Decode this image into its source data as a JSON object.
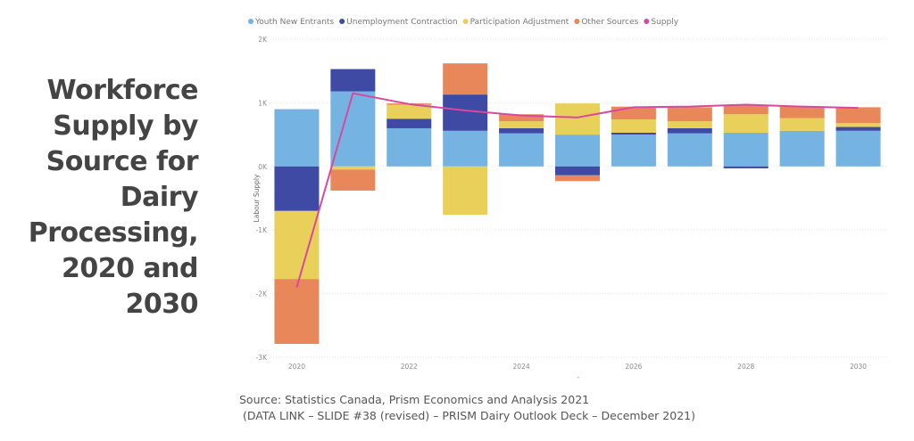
{
  "title_lines": [
    "Workforce",
    "Supply by",
    "Source for",
    "Dairy",
    "Processing,",
    "2020 and",
    "2030"
  ],
  "source_line1": "Source: Statistics Canada, Prism Economics and Analysis 2021",
  "source_line2": " (DATA LINK – SLIDE #38 (revised) – PRISM Dairy Outlook Deck – December 2021)",
  "chart_data": {
    "type": "bar",
    "stacked": true,
    "title": "Workforce Supply by Source for Dairy Processing, 2020 and 2030",
    "xlabel": "",
    "ylabel": "Labour Supply",
    "ylim": [
      -3000,
      2000
    ],
    "yticks": [
      2000,
      1000,
      0,
      -1000,
      -2000,
      -3000
    ],
    "ytick_labels": [
      "2K",
      "1K",
      "0K",
      "-1K",
      "-2K",
      "-3K"
    ],
    "categories": [
      "2020",
      "2021",
      "2022",
      "2023",
      "2024",
      "2025",
      "2026",
      "2027",
      "2028",
      "2029",
      "2030"
    ],
    "xtick_labels": [
      "2020",
      "",
      "2022",
      "",
      "2024",
      "",
      "2026",
      "",
      "2028",
      "",
      "2030"
    ],
    "grid": true,
    "legend_position": "top-left",
    "series": [
      {
        "name": "Youth New Entrants",
        "type": "bar",
        "color": "#74B3E2",
        "values": [
          900,
          1180,
          600,
          560,
          520,
          500,
          500,
          520,
          530,
          560,
          560
        ]
      },
      {
        "name": "Unemployment Contraction",
        "type": "bar",
        "color": "#3F4AA5",
        "values": [
          -700,
          350,
          150,
          570,
          80,
          -140,
          30,
          80,
          -30,
          0,
          60
        ]
      },
      {
        "name": "Participation Adjustment",
        "type": "bar",
        "color": "#E8D05A",
        "values": [
          -1070,
          -50,
          220,
          -760,
          110,
          490,
          210,
          110,
          290,
          200,
          60
        ]
      },
      {
        "name": "Other Sources",
        "type": "bar",
        "color": "#E8875A",
        "values": [
          -1020,
          -330,
          20,
          490,
          110,
          -90,
          200,
          220,
          150,
          180,
          250
        ]
      },
      {
        "name": "Supply",
        "type": "line",
        "color": "#D9489E",
        "values": [
          -1900,
          1150,
          980,
          880,
          800,
          770,
          930,
          940,
          970,
          940,
          920
        ]
      }
    ]
  }
}
